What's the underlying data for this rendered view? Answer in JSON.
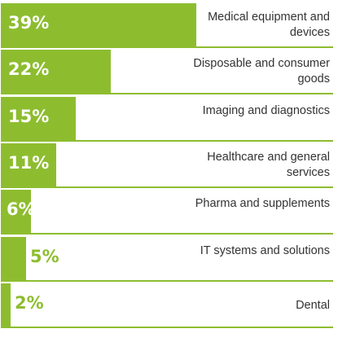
{
  "colors": {
    "bar": "#8dbd2f",
    "divider": "#8dbd2f",
    "value_text_off_bar": "#8dbd2f"
  },
  "chart_data": {
    "type": "bar",
    "orientation": "horizontal",
    "categories": [
      "Medical equipment and devices",
      "Disposable and consumer goods",
      "Imaging and diagnostics",
      "Healthcare and general services",
      "Pharma and supplements",
      "IT systems and solutions",
      "Dental"
    ],
    "values": [
      39,
      22,
      15,
      11,
      6,
      5,
      2
    ],
    "value_labels": [
      "39%",
      "22%",
      "15%",
      "11%",
      "6%",
      "5%",
      "2%"
    ],
    "unit": "%",
    "grid": false,
    "legend": "none"
  }
}
